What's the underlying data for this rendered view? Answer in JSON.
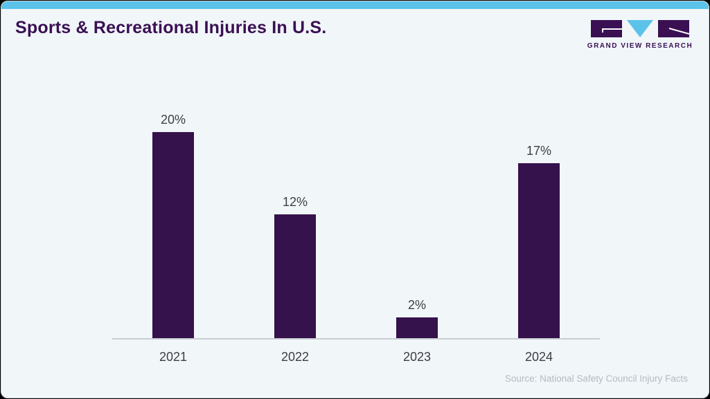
{
  "header": {
    "title": "Sports & Recreational Injuries In U.S.",
    "logo_text": "GRAND VIEW RESEARCH"
  },
  "colors": {
    "accent_cyan": "#5bc2ea",
    "logo_cyan": "#5bc2ea",
    "bar_purple": "#35124b",
    "title_purple": "#3a1053",
    "card_background": "#f1f6f9",
    "axis_gray": "#c9ced3",
    "label_gray": "#3d3d44",
    "source_gray": "#b4bac1"
  },
  "chart_data": {
    "type": "bar",
    "categories": [
      "2021",
      "2022",
      "2023",
      "2024"
    ],
    "values": [
      20,
      12,
      2,
      17
    ],
    "value_labels": [
      "20%",
      "12%",
      "2%",
      "17%"
    ],
    "title": "Sports & Recreational Injuries In U.S.",
    "xlabel": "",
    "ylabel": "",
    "ylim": [
      0,
      20
    ],
    "grid": false,
    "legend": false,
    "bar_color": "#35124b"
  },
  "footer": {
    "source": "Source: National Safety Council Injury Facts"
  }
}
